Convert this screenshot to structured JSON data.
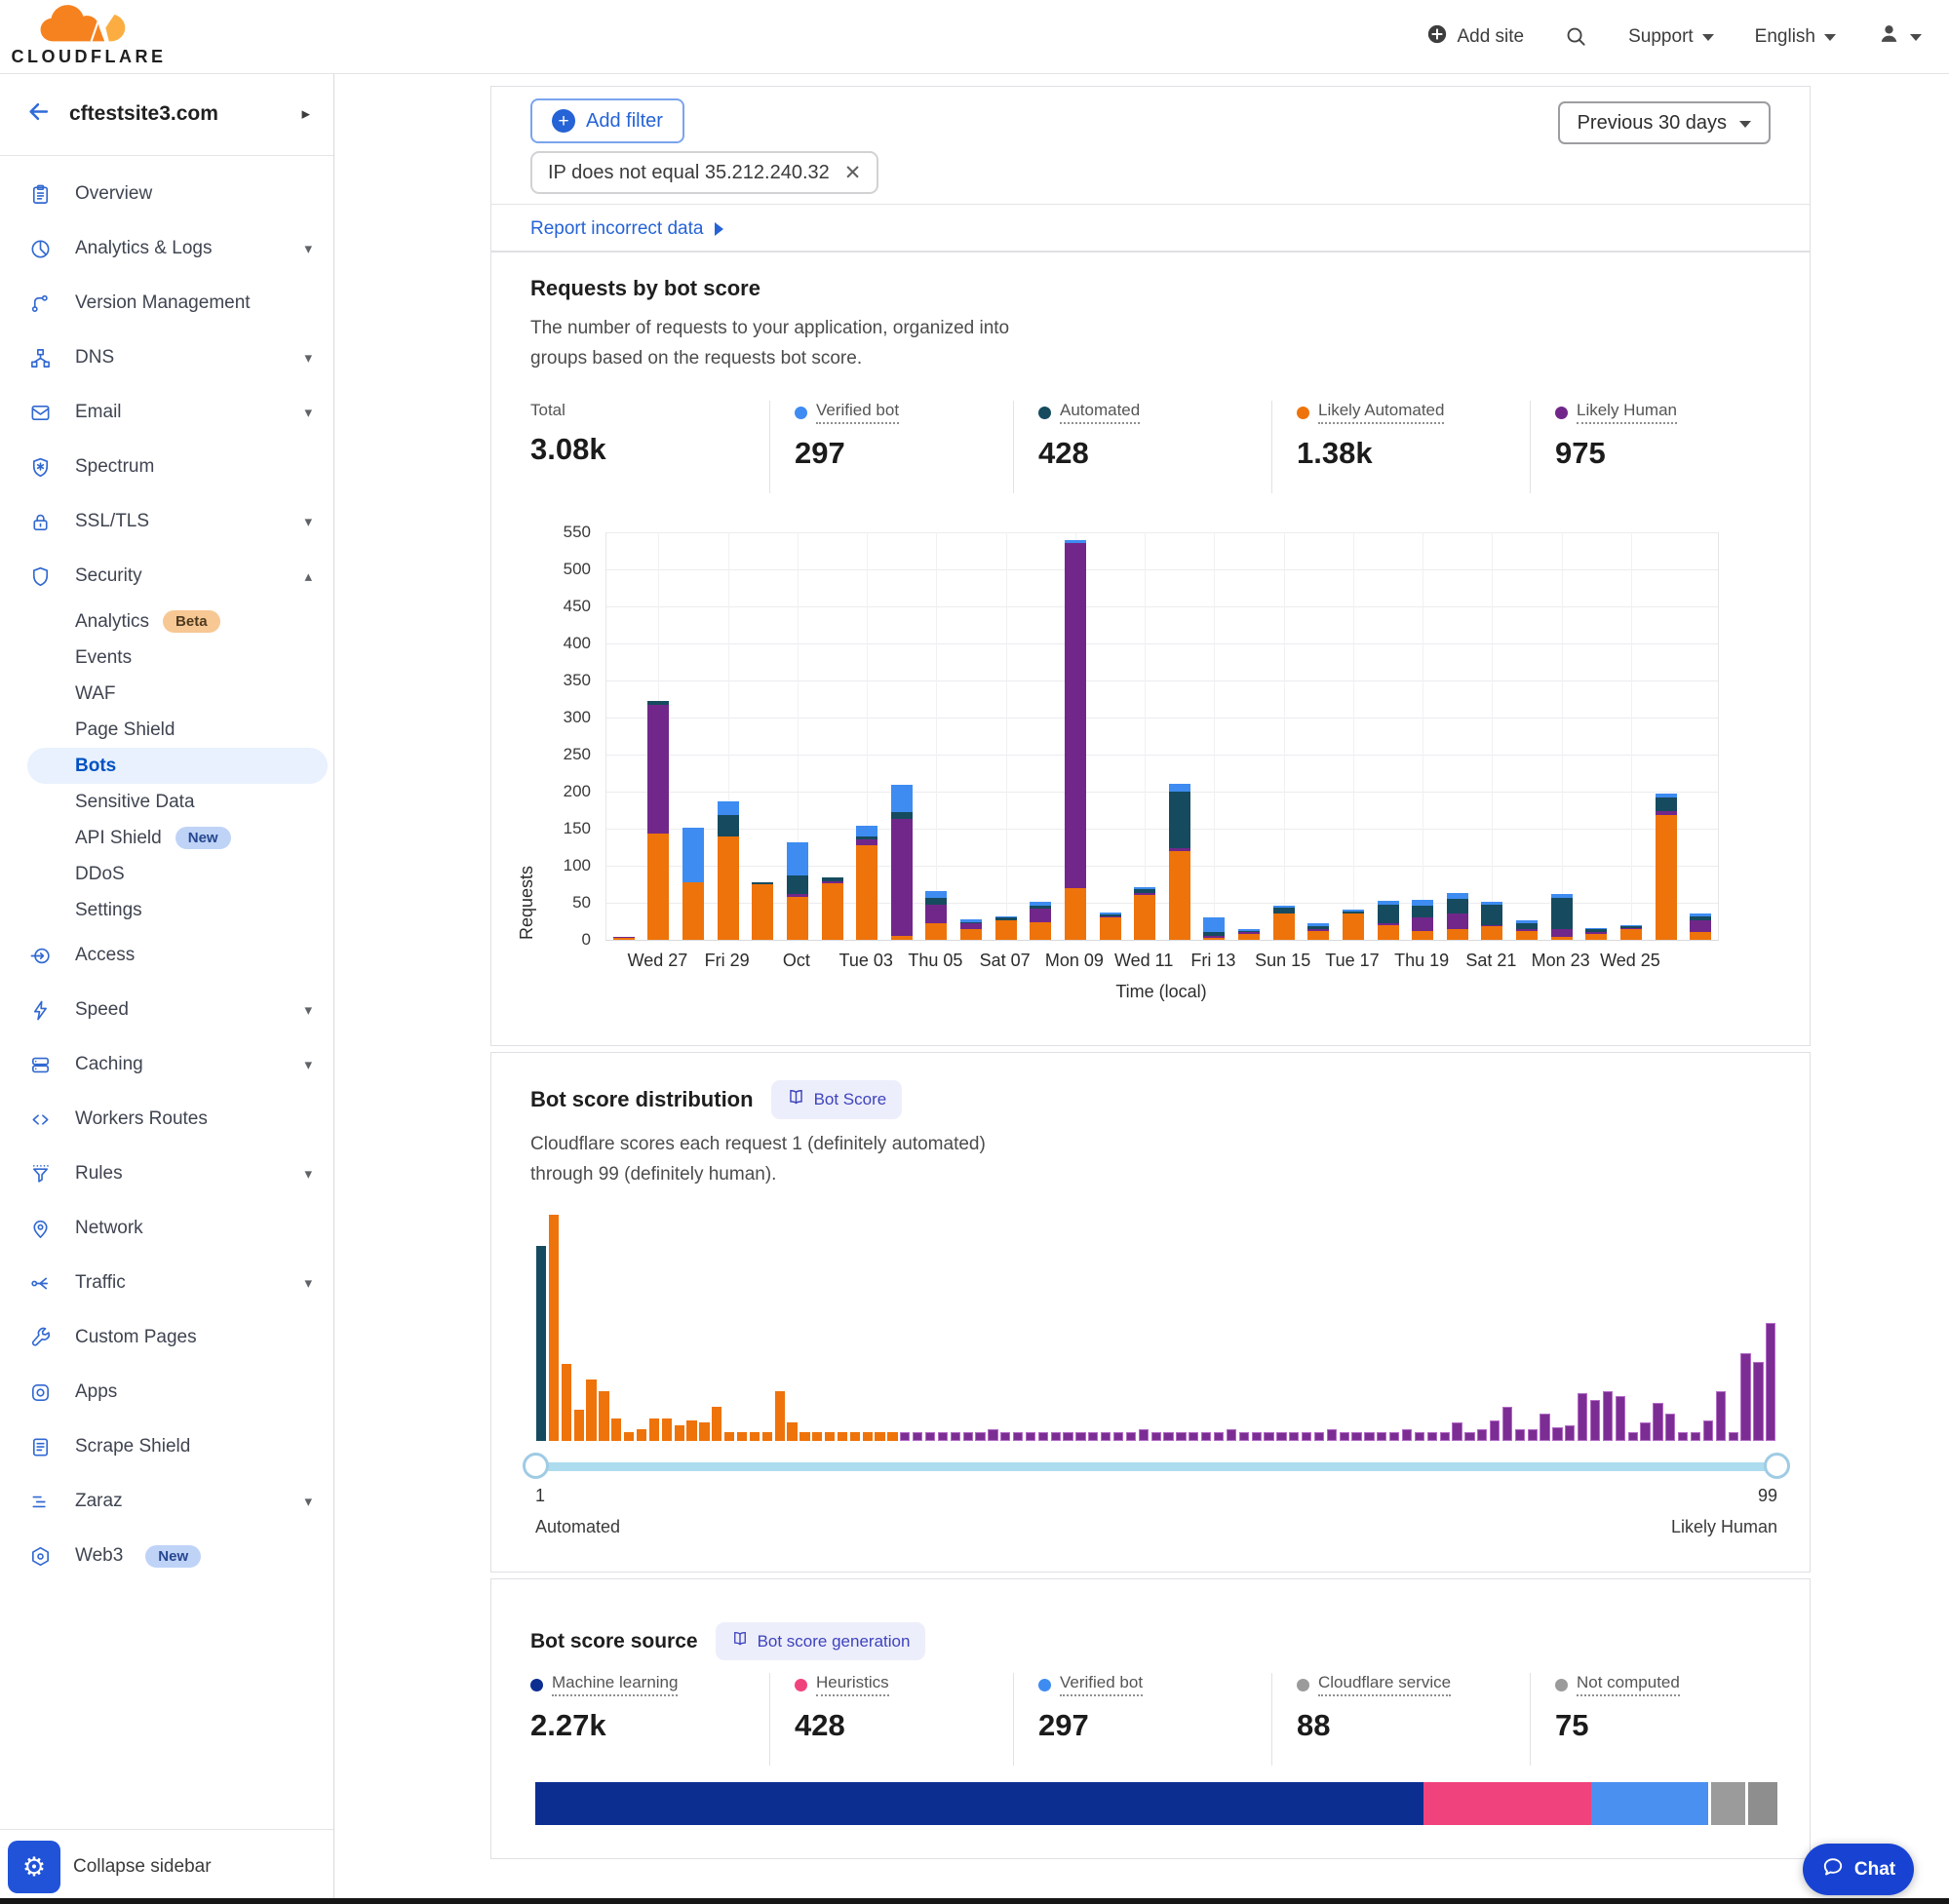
{
  "topnav": {
    "brand": "CLOUDFLARE",
    "add_site": "Add site",
    "support": "Support",
    "language": "English"
  },
  "sidebar": {
    "site": "cftestsite3.com",
    "collapse": "Collapse sidebar",
    "items": [
      {
        "label": "Overview",
        "icon": "clipboard",
        "type": "top"
      },
      {
        "label": "Analytics & Logs",
        "icon": "pie",
        "type": "top",
        "caret": "down"
      },
      {
        "label": "Version Management",
        "icon": "branch",
        "type": "top"
      },
      {
        "label": "DNS",
        "icon": "hierarchy",
        "type": "top",
        "caret": "down"
      },
      {
        "label": "Email",
        "icon": "envelope",
        "type": "top",
        "caret": "down"
      },
      {
        "label": "Spectrum",
        "icon": "shield-star",
        "type": "top"
      },
      {
        "label": "SSL/TLS",
        "icon": "lock",
        "type": "top",
        "caret": "down"
      },
      {
        "label": "Security",
        "icon": "shield",
        "type": "top",
        "caret": "up"
      },
      {
        "label": "Analytics",
        "type": "sub",
        "badge": "Beta",
        "badge_style": "beta"
      },
      {
        "label": "Events",
        "type": "sub"
      },
      {
        "label": "WAF",
        "type": "sub"
      },
      {
        "label": "Page Shield",
        "type": "sub"
      },
      {
        "label": "Bots",
        "type": "sub",
        "active": true
      },
      {
        "label": "Sensitive Data",
        "type": "sub"
      },
      {
        "label": "API Shield",
        "type": "sub",
        "badge": "New",
        "badge_style": "new"
      },
      {
        "label": "DDoS",
        "type": "sub"
      },
      {
        "label": "Settings",
        "type": "sub"
      },
      {
        "label": "Access",
        "icon": "arrow-circle",
        "type": "top"
      },
      {
        "label": "Speed",
        "icon": "lightning",
        "type": "top",
        "caret": "down"
      },
      {
        "label": "Caching",
        "icon": "stack",
        "type": "top",
        "caret": "down"
      },
      {
        "label": "Workers Routes",
        "icon": "code",
        "type": "top"
      },
      {
        "label": "Rules",
        "icon": "funnel",
        "type": "top",
        "caret": "down"
      },
      {
        "label": "Network",
        "icon": "pin",
        "type": "top"
      },
      {
        "label": "Traffic",
        "icon": "share",
        "type": "top",
        "caret": "down"
      },
      {
        "label": "Custom Pages",
        "icon": "wrench",
        "type": "top"
      },
      {
        "label": "Apps",
        "icon": "app",
        "type": "top"
      },
      {
        "label": "Scrape Shield",
        "icon": "document",
        "type": "top"
      },
      {
        "label": "Zaraz",
        "icon": "zaraz",
        "type": "top",
        "caret": "down"
      },
      {
        "label": "Web3",
        "icon": "web3",
        "type": "top",
        "badge": "New",
        "badge_style": "new"
      }
    ]
  },
  "filters": {
    "add_filter": "Add filter",
    "chip": "IP does not equal 35.212.240.32",
    "date_range": "Previous 30 days",
    "report_link": "Report incorrect data"
  },
  "requests_card": {
    "title": "Requests by bot score",
    "description_line1": "The number of requests to your application, organized into",
    "description_line2": "groups based on the requests bot score.",
    "stats": [
      {
        "label": "Total",
        "value": "3.08k",
        "dot": null
      },
      {
        "label": "Verified bot",
        "value": "297",
        "dot": "#3E8CF1"
      },
      {
        "label": "Automated",
        "value": "428",
        "dot": "#164B5F"
      },
      {
        "label": "Likely Automated",
        "value": "1.38k",
        "dot": "#EE730A"
      },
      {
        "label": "Likely Human",
        "value": "975",
        "dot": "#71278A"
      }
    ]
  },
  "dist_card": {
    "title": "Bot score distribution",
    "badge": "Bot Score",
    "description_line1": "Cloudflare scores each request 1 (definitely automated)",
    "description_line2": "through 99 (definitely human).",
    "slider": {
      "min_label": "1",
      "max_label": "99",
      "min_caption": "Automated",
      "max_caption": "Likely Human"
    }
  },
  "source_card": {
    "title": "Bot score source",
    "badge": "Bot score generation",
    "stats": [
      {
        "label": "Machine learning",
        "value": "2.27k",
        "dot": "#0C2E91"
      },
      {
        "label": "Heuristics",
        "value": "428",
        "dot": "#F0437E"
      },
      {
        "label": "Verified bot",
        "value": "297",
        "dot": "#3E8CF1"
      },
      {
        "label": "Cloudflare service",
        "value": "88",
        "dot": "#9B9B9B"
      },
      {
        "label": "Not computed",
        "value": "75",
        "dot": "#9B9B9B"
      }
    ]
  },
  "chat": {
    "label": "Chat"
  },
  "chart_data": [
    {
      "type": "bar",
      "stacked": true,
      "title": "Requests by bot score",
      "xlabel": "Time (local)",
      "ylabel": "Requests",
      "ylim": [
        0,
        550
      ],
      "ytick_step": 50,
      "grid": true,
      "series_names": [
        "Likely Automated",
        "Likely Human",
        "Automated",
        "Verified bot"
      ],
      "series_colors": [
        "#EE730A",
        "#71278A",
        "#164B5F",
        "#3E8CF1"
      ],
      "x_tick_labels": [
        "Wed 27",
        "Fri 29",
        "Oct",
        "Tue 03",
        "Thu 05",
        "Sat 07",
        "Mon 09",
        "Wed 11",
        "Fri 13",
        "Sun 15",
        "Tue 17",
        "Thu 19",
        "Sat 21",
        "Mon 23",
        "Wed 25"
      ],
      "label_bar_indices": [
        1,
        3,
        5,
        7,
        9,
        11,
        13,
        15,
        17,
        19,
        21,
        23,
        25,
        27,
        29
      ],
      "bars": [
        [
          2,
          1,
          0,
          0
        ],
        [
          143,
          174,
          5,
          0
        ],
        [
          78,
          0,
          0,
          73
        ],
        [
          140,
          0,
          28,
          19
        ],
        [
          75,
          0,
          3,
          0
        ],
        [
          58,
          4,
          25,
          44
        ],
        [
          76,
          3,
          5,
          0
        ],
        [
          127,
          8,
          5,
          14
        ],
        [
          5,
          158,
          9,
          37
        ],
        [
          22,
          26,
          8,
          10
        ],
        [
          14,
          8,
          2,
          4
        ],
        [
          26,
          0,
          4,
          2
        ],
        [
          24,
          18,
          4,
          6
        ],
        [
          70,
          465,
          0,
          5
        ],
        [
          30,
          2,
          2,
          3
        ],
        [
          60,
          3,
          5,
          3
        ],
        [
          120,
          4,
          76,
          10
        ],
        [
          3,
          2,
          5,
          20
        ],
        [
          8,
          1,
          2,
          1
        ],
        [
          36,
          0,
          8,
          2
        ],
        [
          12,
          3,
          4,
          3
        ],
        [
          36,
          0,
          2,
          3
        ],
        [
          20,
          1,
          26,
          5
        ],
        [
          12,
          18,
          16,
          8
        ],
        [
          15,
          20,
          20,
          8
        ],
        [
          18,
          2,
          28,
          4
        ],
        [
          12,
          2,
          8,
          4
        ],
        [
          4,
          10,
          42,
          6
        ],
        [
          8,
          2,
          4,
          2
        ],
        [
          14,
          2,
          2,
          2
        ],
        [
          168,
          6,
          18,
          6
        ],
        [
          10,
          16,
          6,
          4
        ]
      ]
    },
    {
      "type": "bar",
      "subtype": "histogram",
      "title": "Bot score distribution",
      "x_range": [
        1,
        99
      ],
      "color_teal": "#164B5F",
      "color_orange": "#EE730A",
      "color_purple": "#7C2D94",
      "teal_scores": [
        1
      ],
      "orange_max_score": 29,
      "heights_pct": [
        86,
        100,
        34,
        14,
        27,
        22,
        10,
        4,
        5,
        10,
        10,
        7,
        9,
        8,
        15,
        4,
        4,
        4,
        4,
        22,
        8,
        4,
        4,
        4,
        4,
        4,
        4,
        4,
        4,
        4,
        4,
        4,
        4,
        4,
        4,
        4,
        5,
        4,
        4,
        4,
        4,
        4,
        4,
        4,
        4,
        4,
        4,
        4,
        5,
        4,
        4,
        4,
        4,
        4,
        4,
        5,
        4,
        4,
        4,
        4,
        4,
        4,
        4,
        5,
        4,
        4,
        4,
        4,
        4,
        5,
        4,
        4,
        4,
        8,
        4,
        5,
        9,
        15,
        5,
        5,
        12,
        6,
        7,
        21,
        18,
        22,
        20,
        4,
        8,
        17,
        12,
        4,
        4,
        9,
        22,
        4,
        39,
        35,
        52
      ]
    },
    {
      "type": "stacked_bar_horizontal",
      "title": "Bot score source",
      "segments": [
        {
          "label": "Machine learning",
          "value": 2270,
          "color": "#0C2E91"
        },
        {
          "label": "Heuristics",
          "value": 428,
          "color": "#F0437E"
        },
        {
          "label": "Verified bot",
          "value": 297,
          "color": "#4A90F0"
        },
        {
          "label": "Cloudflare service",
          "value": 88,
          "color": "#9B9B9B"
        },
        {
          "label": "Not computed",
          "value": 75,
          "color": "#8E8E8E"
        }
      ]
    }
  ]
}
